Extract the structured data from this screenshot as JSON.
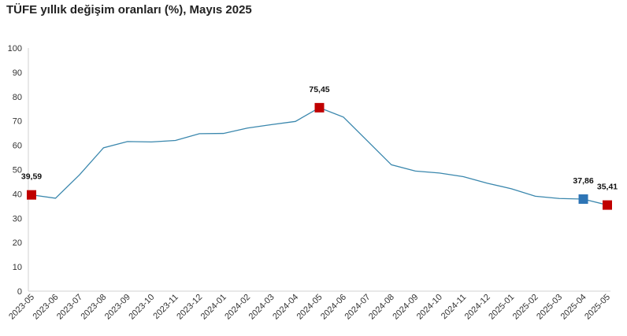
{
  "chart_data": {
    "type": "line",
    "title": "TÜFE yıllık değişim oranları (%), Mayıs 2025",
    "xlabel": "",
    "ylabel": "",
    "ylim": [
      0,
      100
    ],
    "yticks": [
      "0",
      "10",
      "20",
      "30",
      "40",
      "50",
      "60",
      "70",
      "80",
      "90",
      "100"
    ],
    "grid": false,
    "categories": [
      "2023-05",
      "2023-06",
      "2023-07",
      "2023-08",
      "2023-09",
      "2023-10",
      "2023-11",
      "2023-12",
      "2024-01",
      "2024-02",
      "2024-03",
      "2024-04",
      "2024-05",
      "2024-06",
      "2024-07",
      "2024-08",
      "2024-09",
      "2024-10",
      "2024-11",
      "2024-12",
      "2025-01",
      "2025-02",
      "2025-03",
      "2025-04",
      "2025-05"
    ],
    "values": [
      39.59,
      38.21,
      47.83,
      58.94,
      61.53,
      61.36,
      61.98,
      64.77,
      64.86,
      67.07,
      68.5,
      69.8,
      75.45,
      71.6,
      61.78,
      51.97,
      49.38,
      48.58,
      47.09,
      44.38,
      42.12,
      39.05,
      38.1,
      37.86,
      35.41
    ],
    "line_color": "#3A87AD",
    "highlights": [
      {
        "index": 0,
        "label": "39,59",
        "color": "#C00000"
      },
      {
        "index": 12,
        "label": "75,45",
        "color": "#C00000"
      },
      {
        "index": 23,
        "label": "37,86",
        "color": "#2E75B6"
      },
      {
        "index": 24,
        "label": "35,41",
        "color": "#C00000"
      }
    ]
  }
}
